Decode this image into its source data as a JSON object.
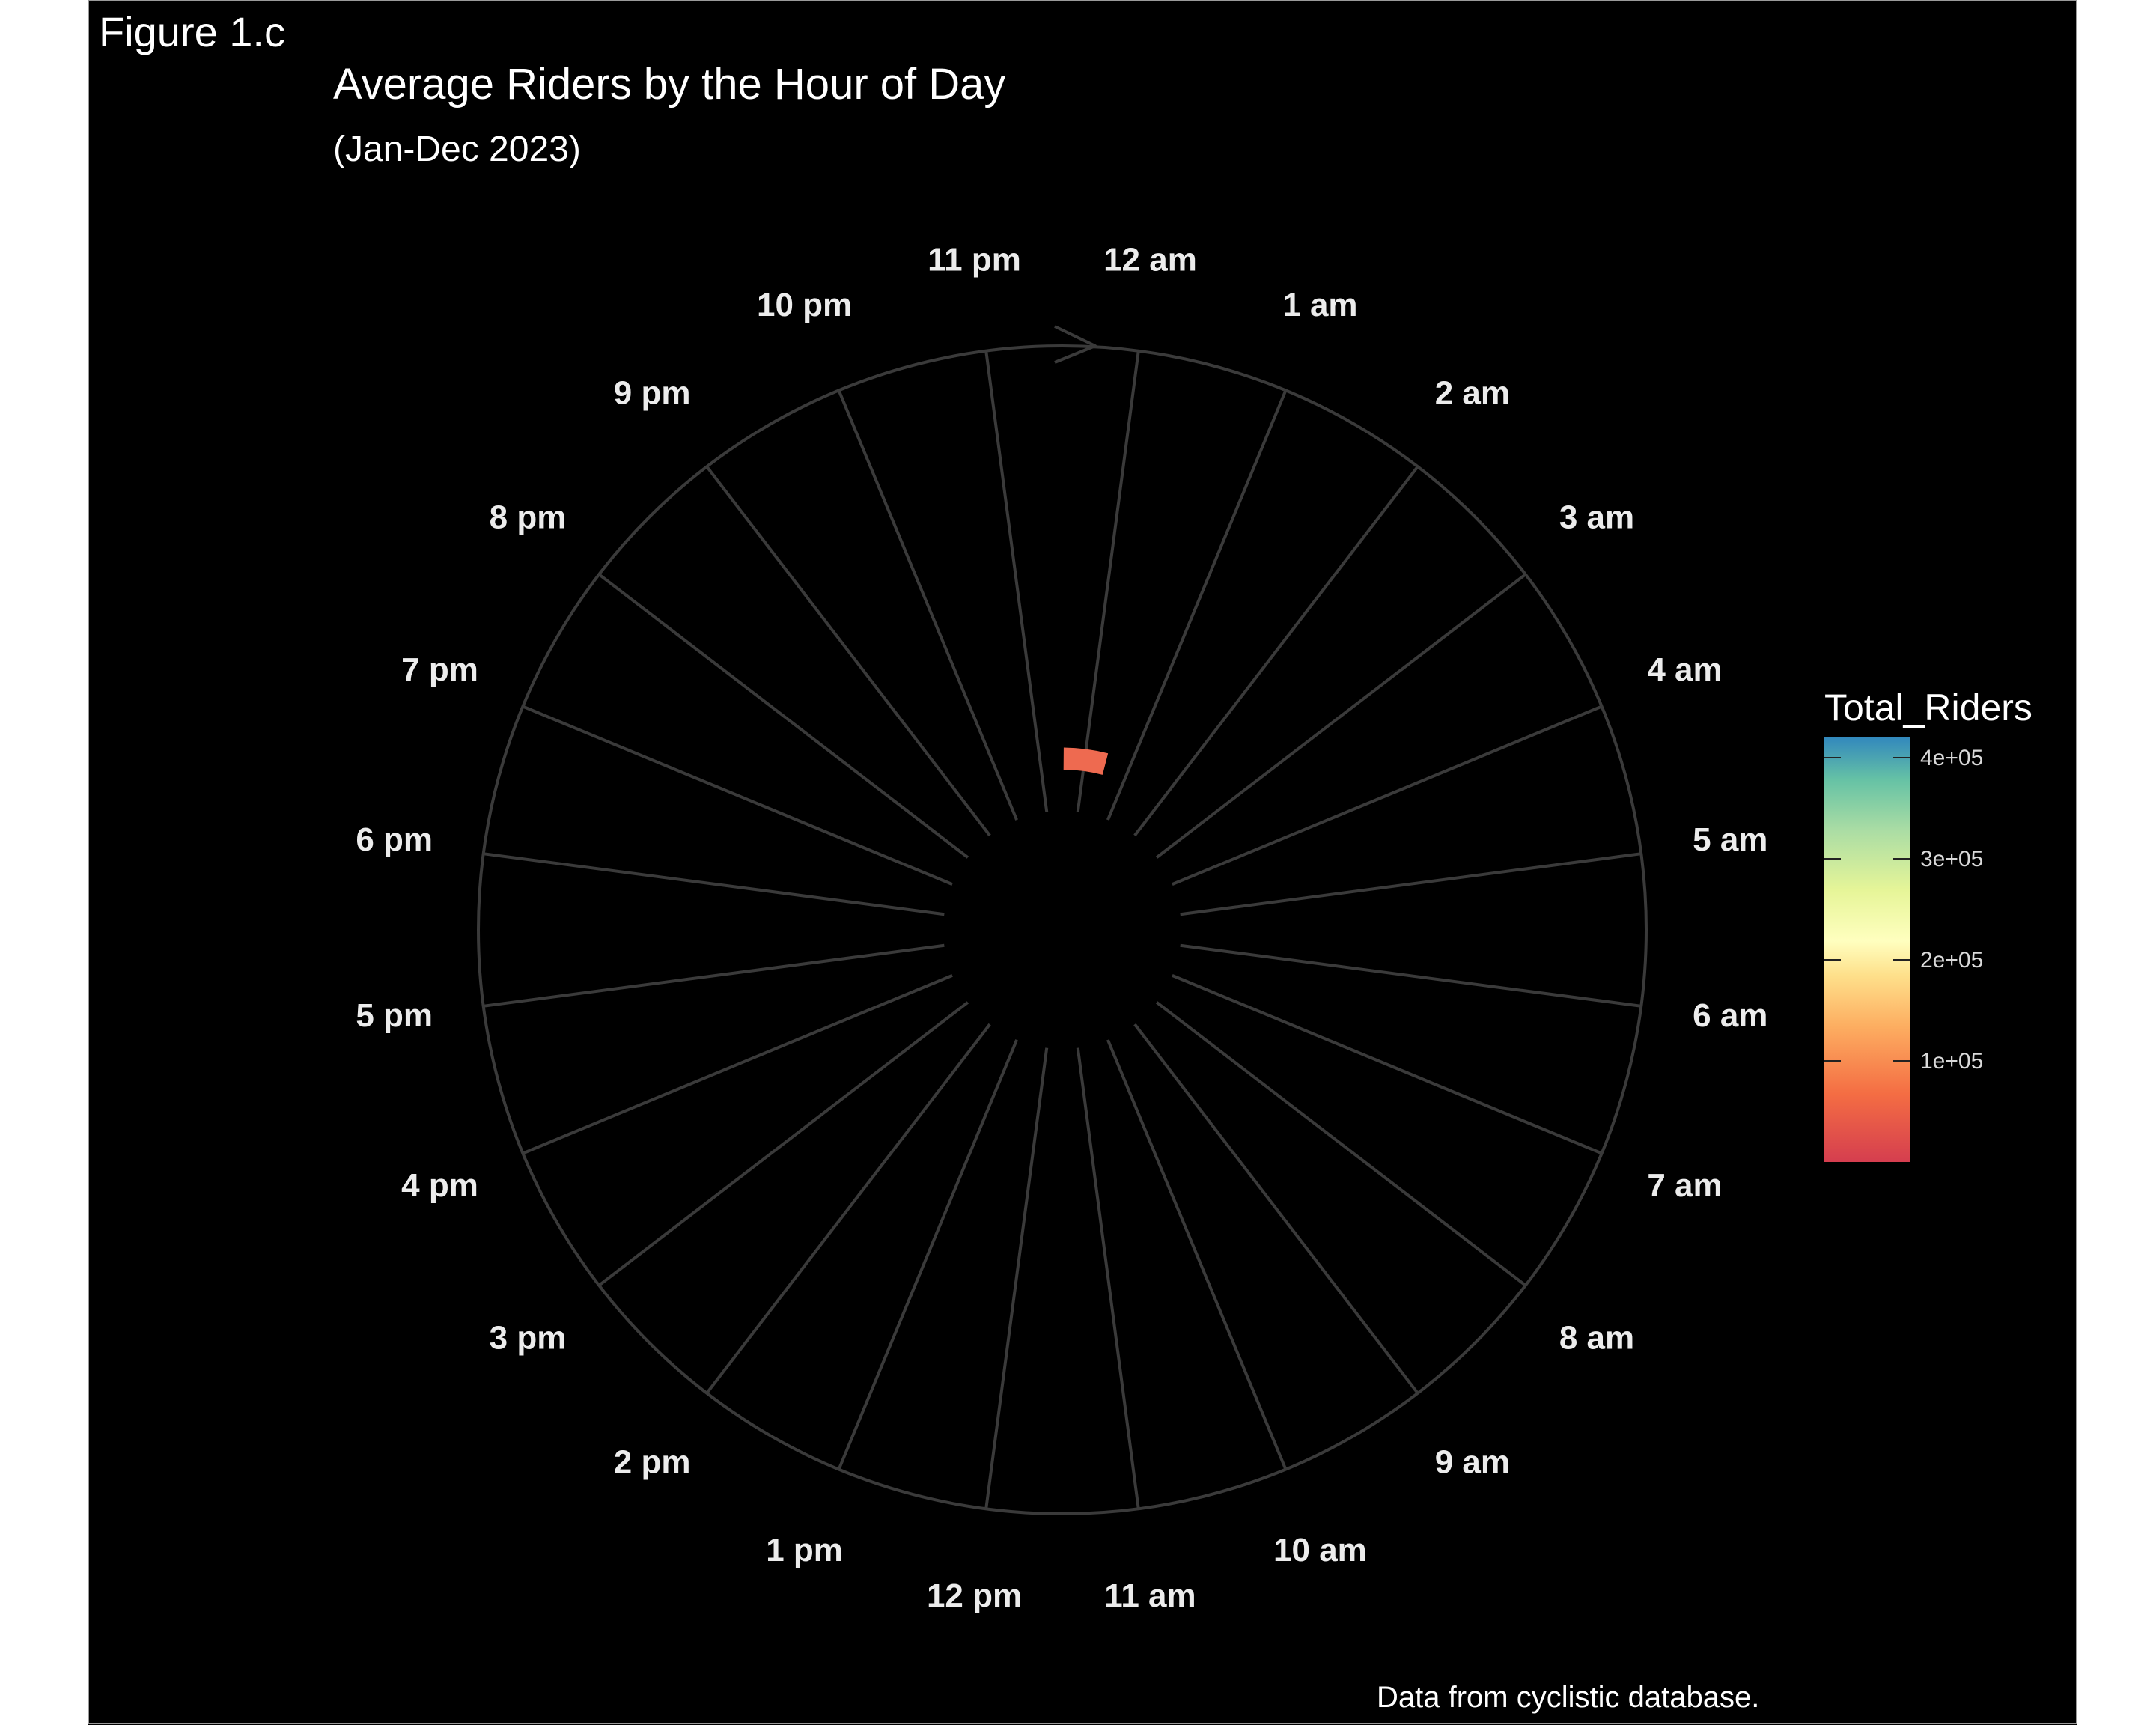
{
  "figure_tag": "Figure 1.c",
  "caption": "Data from cyclistic database.",
  "colors": {
    "background": "#000000",
    "grid": "#3a3a3a",
    "text": "#ffffff",
    "bar": "#EE6A50"
  },
  "chart_data": {
    "type": "bar",
    "coord": "polar",
    "title": "Average Riders by the Hour of Day",
    "subtitle": "(Jan-Dec 2023)",
    "categories": [
      "12 am",
      "1 am",
      "2 am",
      "3 am",
      "4 am",
      "5 am",
      "6 am",
      "7 am",
      "8 am",
      "9 am",
      "10 am",
      "11 am",
      "12 pm",
      "1 pm",
      "2 pm",
      "3 pm",
      "4 pm",
      "5 pm",
      "6 pm",
      "7 pm",
      "8 pm",
      "9 pm",
      "10 pm",
      "11 pm"
    ],
    "values": [
      95000,
      0,
      0,
      0,
      0,
      0,
      0,
      0,
      0,
      0,
      0,
      0,
      0,
      0,
      0,
      0,
      0,
      0,
      0,
      0,
      0,
      0,
      0,
      0
    ],
    "ylim": [
      0,
      2000000
    ],
    "grid": true,
    "legend": {
      "title": "Total_Riders",
      "position": "right",
      "ticks": [
        "4e+05",
        "3e+05",
        "2e+05",
        "1e+05"
      ],
      "tick_values": [
        400000,
        300000,
        200000,
        100000
      ],
      "range": [
        0,
        420000
      ],
      "palette": "Spectral"
    }
  }
}
